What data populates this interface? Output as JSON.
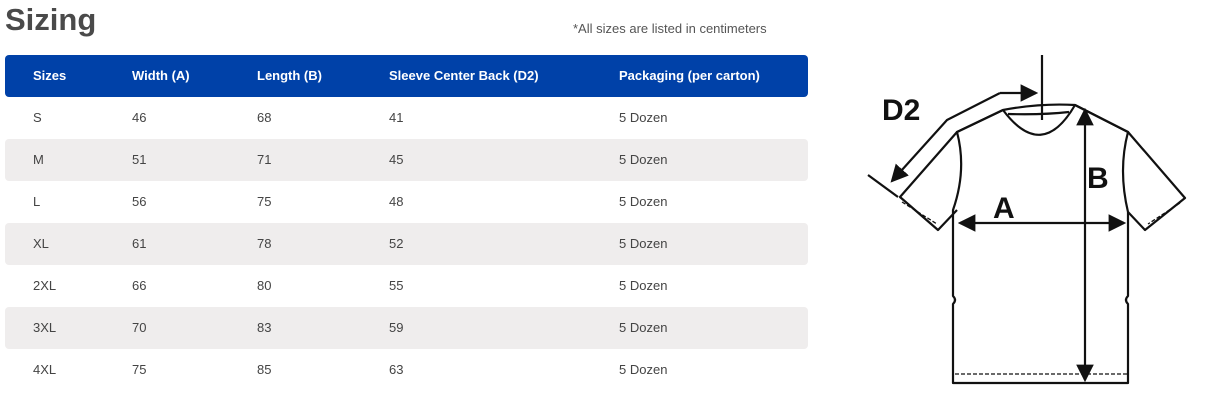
{
  "title": "Sizing",
  "note": "*All sizes are listed in centimeters",
  "table": {
    "headers": [
      "Sizes",
      "Width (A)",
      "Length (B)",
      "Sleeve Center Back (D2)",
      "Packaging (per carton)"
    ],
    "rows": [
      [
        "S",
        "46",
        "68",
        "41",
        "5 Dozen"
      ],
      [
        "M",
        "51",
        "71",
        "45",
        "5 Dozen"
      ],
      [
        "L",
        "56",
        "75",
        "48",
        "5 Dozen"
      ],
      [
        "XL",
        "61",
        "78",
        "52",
        "5 Dozen"
      ],
      [
        "2XL",
        "66",
        "80",
        "55",
        "5 Dozen"
      ],
      [
        "3XL",
        "70",
        "83",
        "59",
        "5 Dozen"
      ],
      [
        "4XL",
        "75",
        "85",
        "63",
        "5 Dozen"
      ]
    ]
  },
  "diagram": {
    "label_a": "A",
    "label_b": "B",
    "label_d2": "D2"
  },
  "colors": {
    "header": "#0041a8",
    "stripe": "#efeded"
  }
}
